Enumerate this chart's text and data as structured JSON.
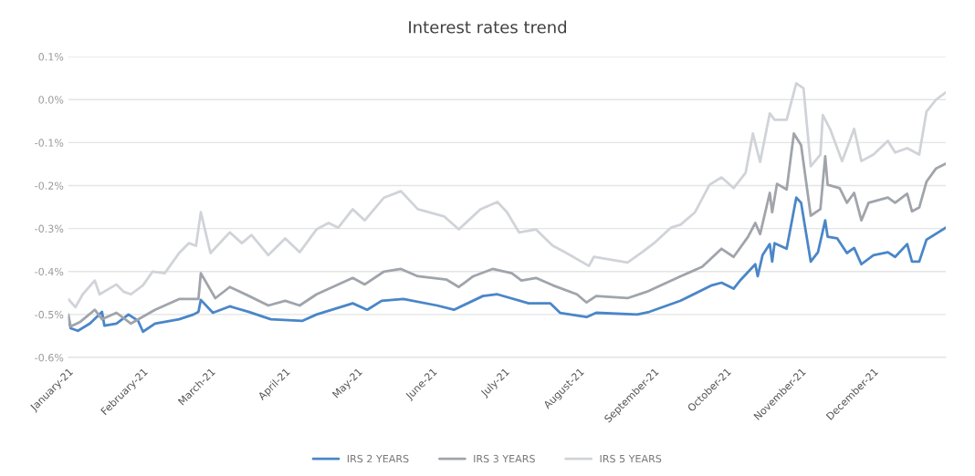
{
  "chart_data": {
    "type": "line",
    "title": "Interest rates trend",
    "xlim": [
      "2021-01-01",
      "2021-12-31"
    ],
    "xticks": [
      {
        "value": "2021-01-01",
        "label": "January-21"
      },
      {
        "value": "2021-02-01",
        "label": "February-21"
      },
      {
        "value": "2021-03-01",
        "label": "March-21"
      },
      {
        "value": "2021-04-01",
        "label": "April-21"
      },
      {
        "value": "2021-05-01",
        "label": "May-21"
      },
      {
        "value": "2021-06-01",
        "label": "June-21"
      },
      {
        "value": "2021-07-01",
        "label": "July-21"
      },
      {
        "value": "2021-08-01",
        "label": "August-21"
      },
      {
        "value": "2021-09-01",
        "label": "September-21"
      },
      {
        "value": "2021-10-01",
        "label": "October-21"
      },
      {
        "value": "2021-11-01",
        "label": "November-21"
      },
      {
        "value": "2021-12-01",
        "label": "December-21"
      }
    ],
    "ylim": [
      -0.6,
      0.1
    ],
    "yticks": [
      {
        "value": -0.6,
        "label": "-0.6%"
      },
      {
        "value": -0.5,
        "label": "-0.5%"
      },
      {
        "value": -0.4,
        "label": "-0.4%"
      },
      {
        "value": -0.3,
        "label": "-0.3%"
      },
      {
        "value": -0.2,
        "label": "-0.2%"
      },
      {
        "value": -0.1,
        "label": "-0.1%"
      },
      {
        "value": 0.0,
        "label": "0.0%"
      },
      {
        "value": 0.1,
        "label": "0.1%"
      }
    ],
    "grid": "y",
    "legend": "bottom",
    "marker": "none",
    "line_style": "solid",
    "series": [
      {
        "name": "IRS 2 YEARS",
        "color": "#4a86c8",
        "x": [
          "2021-01-01",
          "2021-01-02",
          "2021-01-05",
          "2021-01-10",
          "2021-01-15",
          "2021-01-16",
          "2021-01-21",
          "2021-01-26",
          "2021-01-30",
          "2021-02-01",
          "2021-02-06",
          "2021-02-16",
          "2021-02-22",
          "2021-02-24",
          "2021-02-25",
          "2021-03-02",
          "2021-03-09",
          "2021-03-17",
          "2021-03-26",
          "2021-04-08",
          "2021-04-14",
          "2021-04-29",
          "2021-05-05",
          "2021-05-11",
          "2021-05-20",
          "2021-06-03",
          "2021-06-10",
          "2021-06-22",
          "2021-06-28",
          "2021-07-11",
          "2021-07-20",
          "2021-07-24",
          "2021-08-04",
          "2021-08-08",
          "2021-08-25",
          "2021-08-30",
          "2021-09-12",
          "2021-09-25",
          "2021-09-29",
          "2021-10-04",
          "2021-10-07",
          "2021-10-13",
          "2021-10-14",
          "2021-10-16",
          "2021-10-19",
          "2021-10-20",
          "2021-10-21",
          "2021-10-26",
          "2021-10-30",
          "2021-11-01",
          "2021-11-05",
          "2021-11-08",
          "2021-11-11",
          "2021-11-12",
          "2021-11-16",
          "2021-11-20",
          "2021-11-23",
          "2021-11-26",
          "2021-12-01",
          "2021-12-07",
          "2021-12-10",
          "2021-12-15",
          "2021-12-17",
          "2021-12-20",
          "2021-12-23",
          "2021-12-31"
        ],
        "values": [
          -0.506,
          -0.532,
          -0.538,
          -0.521,
          -0.494,
          -0.526,
          -0.521,
          -0.5,
          -0.515,
          -0.54,
          -0.521,
          -0.511,
          -0.5,
          -0.494,
          -0.466,
          -0.496,
          -0.481,
          -0.494,
          -0.511,
          -0.515,
          -0.5,
          -0.474,
          -0.489,
          -0.468,
          -0.464,
          -0.479,
          -0.489,
          -0.457,
          -0.453,
          -0.474,
          -0.474,
          -0.496,
          -0.506,
          -0.496,
          -0.5,
          -0.494,
          -0.468,
          -0.432,
          -0.426,
          -0.44,
          -0.419,
          -0.383,
          -0.411,
          -0.362,
          -0.336,
          -0.377,
          -0.334,
          -0.347,
          -0.228,
          -0.24,
          -0.377,
          -0.355,
          -0.281,
          -0.319,
          -0.323,
          -0.357,
          -0.345,
          -0.383,
          -0.362,
          -0.355,
          -0.366,
          -0.336,
          -0.377,
          -0.377,
          -0.326,
          -0.298
        ]
      },
      {
        "name": "IRS 3 YEARS",
        "color": "#a0a4ab",
        "x": [
          "2021-01-01",
          "2021-01-02",
          "2021-01-06",
          "2021-01-12",
          "2021-01-15",
          "2021-01-21",
          "2021-01-27",
          "2021-02-06",
          "2021-02-16",
          "2021-02-24",
          "2021-02-25",
          "2021-03-03",
          "2021-03-09",
          "2021-03-17",
          "2021-03-25",
          "2021-04-01",
          "2021-04-07",
          "2021-04-14",
          "2021-04-29",
          "2021-05-04",
          "2021-05-12",
          "2021-05-19",
          "2021-05-26",
          "2021-06-07",
          "2021-06-12",
          "2021-06-18",
          "2021-06-26",
          "2021-07-04",
          "2021-07-08",
          "2021-07-14",
          "2021-07-21",
          "2021-07-31",
          "2021-08-04",
          "2021-08-08",
          "2021-08-21",
          "2021-08-29",
          "2021-09-12",
          "2021-09-21",
          "2021-09-29",
          "2021-10-04",
          "2021-10-10",
          "2021-10-13",
          "2021-10-15",
          "2021-10-19",
          "2021-10-20",
          "2021-10-22",
          "2021-10-26",
          "2021-10-29",
          "2021-11-01",
          "2021-11-05",
          "2021-11-09",
          "2021-11-11",
          "2021-11-12",
          "2021-11-17",
          "2021-11-20",
          "2021-11-23",
          "2021-11-26",
          "2021-11-29",
          "2021-12-07",
          "2021-12-10",
          "2021-12-15",
          "2021-12-17",
          "2021-12-20",
          "2021-12-23",
          "2021-12-27",
          "2021-12-31"
        ],
        "values": [
          -0.5,
          -0.528,
          -0.517,
          -0.489,
          -0.511,
          -0.496,
          -0.521,
          -0.489,
          -0.464,
          -0.464,
          -0.404,
          -0.462,
          -0.436,
          -0.457,
          -0.479,
          -0.468,
          -0.479,
          -0.453,
          -0.415,
          -0.43,
          -0.4,
          -0.394,
          -0.411,
          -0.419,
          -0.436,
          -0.411,
          -0.394,
          -0.404,
          -0.421,
          -0.415,
          -0.432,
          -0.453,
          -0.472,
          -0.457,
          -0.462,
          -0.447,
          -0.411,
          -0.389,
          -0.347,
          -0.366,
          -0.319,
          -0.287,
          -0.313,
          -0.217,
          -0.262,
          -0.196,
          -0.209,
          -0.079,
          -0.106,
          -0.27,
          -0.255,
          -0.132,
          -0.198,
          -0.206,
          -0.24,
          -0.217,
          -0.281,
          -0.24,
          -0.228,
          -0.24,
          -0.219,
          -0.26,
          -0.251,
          -0.191,
          -0.16,
          -0.149
        ]
      },
      {
        "name": "IRS 5 YEARS",
        "color": "#d0d3d8",
        "x": [
          "2021-01-01",
          "2021-01-04",
          "2021-01-07",
          "2021-01-12",
          "2021-01-14",
          "2021-01-21",
          "2021-01-24",
          "2021-01-27",
          "2021-02-01",
          "2021-02-05",
          "2021-02-10",
          "2021-02-16",
          "2021-02-20",
          "2021-02-23",
          "2021-02-25",
          "2021-03-01",
          "2021-03-09",
          "2021-03-14",
          "2021-03-18",
          "2021-03-25",
          "2021-04-01",
          "2021-04-07",
          "2021-04-14",
          "2021-04-19",
          "2021-04-23",
          "2021-04-29",
          "2021-05-04",
          "2021-05-12",
          "2021-05-19",
          "2021-05-26",
          "2021-06-06",
          "2021-06-12",
          "2021-06-21",
          "2021-06-28",
          "2021-07-02",
          "2021-07-07",
          "2021-07-14",
          "2021-07-21",
          "2021-07-26",
          "2021-08-05",
          "2021-08-07",
          "2021-08-21",
          "2021-08-27",
          "2021-09-01",
          "2021-09-08",
          "2021-09-12",
          "2021-09-18",
          "2021-09-24",
          "2021-09-29",
          "2021-10-04",
          "2021-10-09",
          "2021-10-12",
          "2021-10-15",
          "2021-10-19",
          "2021-10-21",
          "2021-10-26",
          "2021-10-30",
          "2021-11-02",
          "2021-11-05",
          "2021-11-09",
          "2021-11-10",
          "2021-11-13",
          "2021-11-18",
          "2021-11-23",
          "2021-11-26",
          "2021-12-01",
          "2021-12-07",
          "2021-12-10",
          "2021-12-15",
          "2021-12-20",
          "2021-12-23",
          "2021-12-27",
          "2021-12-31"
        ],
        "values": [
          -0.464,
          -0.483,
          -0.453,
          -0.421,
          -0.453,
          -0.43,
          -0.447,
          -0.453,
          -0.432,
          -0.4,
          -0.404,
          -0.357,
          -0.334,
          -0.34,
          -0.262,
          -0.357,
          -0.309,
          -0.334,
          -0.315,
          -0.362,
          -0.323,
          -0.355,
          -0.302,
          -0.287,
          -0.298,
          -0.255,
          -0.281,
          -0.228,
          -0.213,
          -0.255,
          -0.272,
          -0.302,
          -0.255,
          -0.238,
          -0.262,
          -0.309,
          -0.302,
          -0.34,
          -0.355,
          -0.387,
          -0.366,
          -0.379,
          -0.355,
          -0.334,
          -0.298,
          -0.291,
          -0.262,
          -0.198,
          -0.181,
          -0.206,
          -0.17,
          -0.079,
          -0.145,
          -0.032,
          -0.047,
          -0.047,
          0.038,
          0.026,
          -0.155,
          -0.128,
          -0.036,
          -0.068,
          -0.143,
          -0.068,
          -0.143,
          -0.128,
          -0.096,
          -0.123,
          -0.113,
          -0.128,
          -0.028,
          0.0,
          0.017
        ]
      }
    ]
  }
}
